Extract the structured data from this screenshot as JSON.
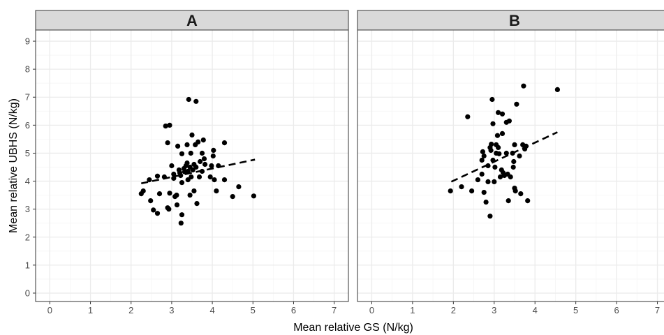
{
  "chart_data": {
    "type": "scatter",
    "xlabel": "Mean relative GS (N/kg)",
    "ylabel": "Mean relative UBHS (N/kg)",
    "xlim": [
      -0.35,
      7.35
    ],
    "ylim": [
      -0.3,
      9.4
    ],
    "x_ticks": [
      0,
      1,
      2,
      3,
      4,
      5,
      6,
      7
    ],
    "y_ticks": [
      0,
      1,
      2,
      3,
      4,
      5,
      6,
      7,
      8,
      9
    ],
    "grid": true,
    "trendline_style": "dashed linear fit",
    "colors": {
      "points": "#000000",
      "strip": "#d9d9d9",
      "grid_major": "#ebebeb",
      "grid_minor": "#f5f5f5",
      "border": "#333333"
    },
    "panels": [
      {
        "label": "A",
        "trendline": [
          [
            2.25,
            3.92
          ],
          [
            5.05,
            4.77
          ]
        ],
        "points": [
          [
            2.25,
            3.55
          ],
          [
            2.3,
            3.65
          ],
          [
            2.45,
            4.05
          ],
          [
            2.48,
            3.3
          ],
          [
            2.55,
            2.97
          ],
          [
            2.65,
            2.85
          ],
          [
            2.65,
            4.18
          ],
          [
            2.7,
            3.55
          ],
          [
            2.82,
            4.15
          ],
          [
            2.85,
            5.97
          ],
          [
            2.9,
            5.37
          ],
          [
            2.9,
            3.05
          ],
          [
            2.95,
            6.0
          ],
          [
            2.93,
            3.0
          ],
          [
            2.95,
            3.57
          ],
          [
            3.0,
            4.55
          ],
          [
            3.05,
            4.25
          ],
          [
            3.05,
            4.1
          ],
          [
            3.08,
            3.45
          ],
          [
            3.15,
            5.25
          ],
          [
            3.12,
            3.5
          ],
          [
            3.13,
            3.15
          ],
          [
            3.18,
            4.4
          ],
          [
            3.2,
            4.3
          ],
          [
            3.22,
            4.2
          ],
          [
            3.25,
            4.98
          ],
          [
            3.25,
            3.95
          ],
          [
            3.25,
            2.8
          ],
          [
            3.23,
            2.5
          ],
          [
            3.3,
            4.45
          ],
          [
            3.32,
            4.33
          ],
          [
            3.35,
            4.55
          ],
          [
            3.38,
            5.3
          ],
          [
            3.38,
            4.65
          ],
          [
            3.4,
            4.35
          ],
          [
            3.4,
            4.05
          ],
          [
            3.42,
            6.92
          ],
          [
            3.45,
            4.5
          ],
          [
            3.45,
            3.5
          ],
          [
            3.47,
            5.0
          ],
          [
            3.48,
            4.15
          ],
          [
            3.5,
            5.65
          ],
          [
            3.52,
            4.4
          ],
          [
            3.55,
            4.6
          ],
          [
            3.55,
            3.65
          ],
          [
            3.58,
            5.3
          ],
          [
            3.6,
            6.85
          ],
          [
            3.6,
            4.5
          ],
          [
            3.62,
            3.2
          ],
          [
            3.65,
            5.4
          ],
          [
            3.68,
            4.15
          ],
          [
            3.7,
            4.7
          ],
          [
            3.75,
            5.0
          ],
          [
            3.75,
            4.35
          ],
          [
            3.78,
            5.47
          ],
          [
            3.8,
            4.8
          ],
          [
            3.82,
            4.6
          ],
          [
            3.95,
            4.15
          ],
          [
            3.98,
            4.55
          ],
          [
            4.02,
            4.9
          ],
          [
            4.03,
            5.1
          ],
          [
            4.05,
            4.05
          ],
          [
            4.1,
            3.65
          ],
          [
            4.15,
            4.55
          ],
          [
            4.3,
            5.37
          ],
          [
            4.3,
            4.05
          ],
          [
            4.5,
            3.45
          ],
          [
            4.65,
            3.8
          ],
          [
            5.02,
            3.47
          ]
        ]
      },
      {
        "label": "B",
        "trendline": [
          [
            1.95,
            3.98
          ],
          [
            4.55,
            5.75
          ]
        ],
        "points": [
          [
            1.93,
            3.65
          ],
          [
            2.2,
            3.8
          ],
          [
            2.35,
            6.3
          ],
          [
            2.45,
            3.65
          ],
          [
            2.6,
            4.05
          ],
          [
            2.7,
            4.25
          ],
          [
            2.7,
            4.75
          ],
          [
            2.72,
            5.05
          ],
          [
            2.75,
            4.9
          ],
          [
            2.75,
            3.6
          ],
          [
            2.8,
            3.25
          ],
          [
            2.85,
            4.55
          ],
          [
            2.85,
            3.98
          ],
          [
            2.9,
            5.2
          ],
          [
            2.9,
            2.75
          ],
          [
            2.92,
            5.1
          ],
          [
            2.93,
            5.32
          ],
          [
            2.95,
            6.92
          ],
          [
            2.97,
            6.05
          ],
          [
            2.97,
            4.75
          ],
          [
            3.0,
            3.98
          ],
          [
            3.02,
            4.5
          ],
          [
            3.05,
            5.0
          ],
          [
            3.05,
            5.3
          ],
          [
            3.08,
            5.63
          ],
          [
            3.1,
            5.2
          ],
          [
            3.1,
            6.45
          ],
          [
            3.12,
            4.98
          ],
          [
            3.15,
            4.15
          ],
          [
            3.18,
            4.4
          ],
          [
            3.2,
            5.7
          ],
          [
            3.2,
            6.4
          ],
          [
            3.22,
            4.3
          ],
          [
            3.25,
            4.2
          ],
          [
            3.3,
            6.1
          ],
          [
            3.3,
            5.0
          ],
          [
            3.33,
            4.25
          ],
          [
            3.35,
            3.3
          ],
          [
            3.37,
            6.15
          ],
          [
            3.4,
            4.15
          ],
          [
            3.45,
            5.0
          ],
          [
            3.47,
            4.5
          ],
          [
            3.48,
            4.7
          ],
          [
            3.5,
            5.3
          ],
          [
            3.5,
            3.75
          ],
          [
            3.52,
            3.65
          ],
          [
            3.55,
            6.75
          ],
          [
            3.62,
            4.9
          ],
          [
            3.65,
            3.55
          ],
          [
            3.7,
            5.3
          ],
          [
            3.72,
            7.4
          ],
          [
            3.75,
            5.15
          ],
          [
            3.78,
            5.25
          ],
          [
            3.82,
            3.3
          ],
          [
            4.55,
            7.27
          ]
        ]
      }
    ]
  }
}
